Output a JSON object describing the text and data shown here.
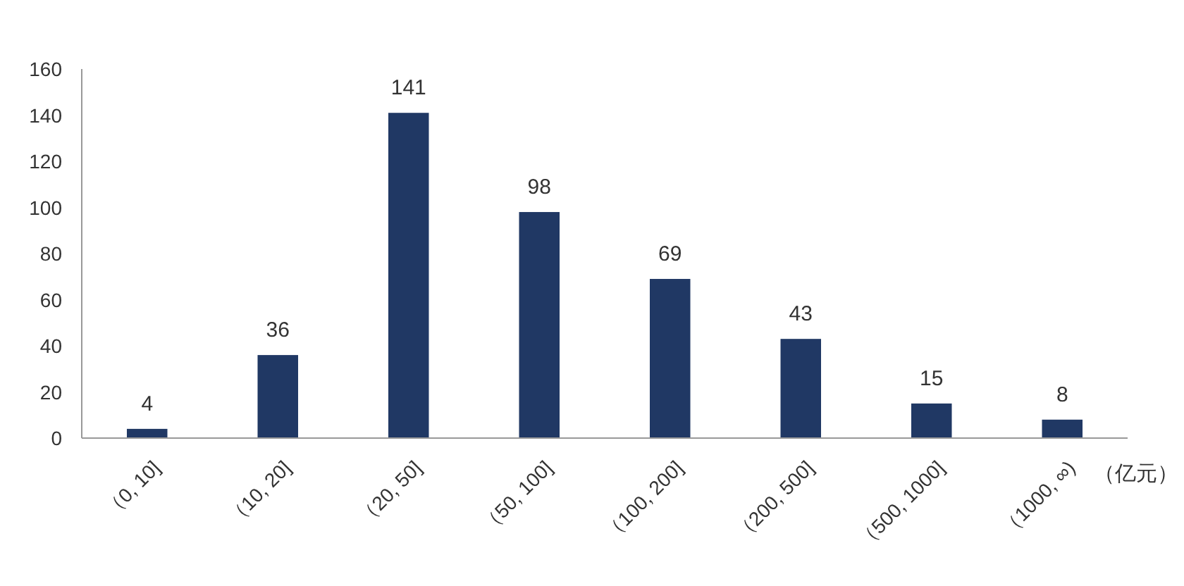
{
  "chart_data": {
    "type": "bar",
    "xlabel": "（亿元）",
    "categories": [
      "（0, 10]",
      "（10, 20]",
      "（20, 50]",
      "（50, 100]",
      "（100, 200]",
      "（200, 500]",
      "（500, 1000]",
      "（1000, ∞)"
    ],
    "values": [
      4,
      36,
      141,
      98,
      69,
      43,
      15,
      8
    ],
    "color": "#203864",
    "ylim": [
      0,
      160
    ],
    "yticks": [
      0,
      20,
      40,
      60,
      80,
      100,
      120,
      140,
      160
    ],
    "data_labels": true
  }
}
